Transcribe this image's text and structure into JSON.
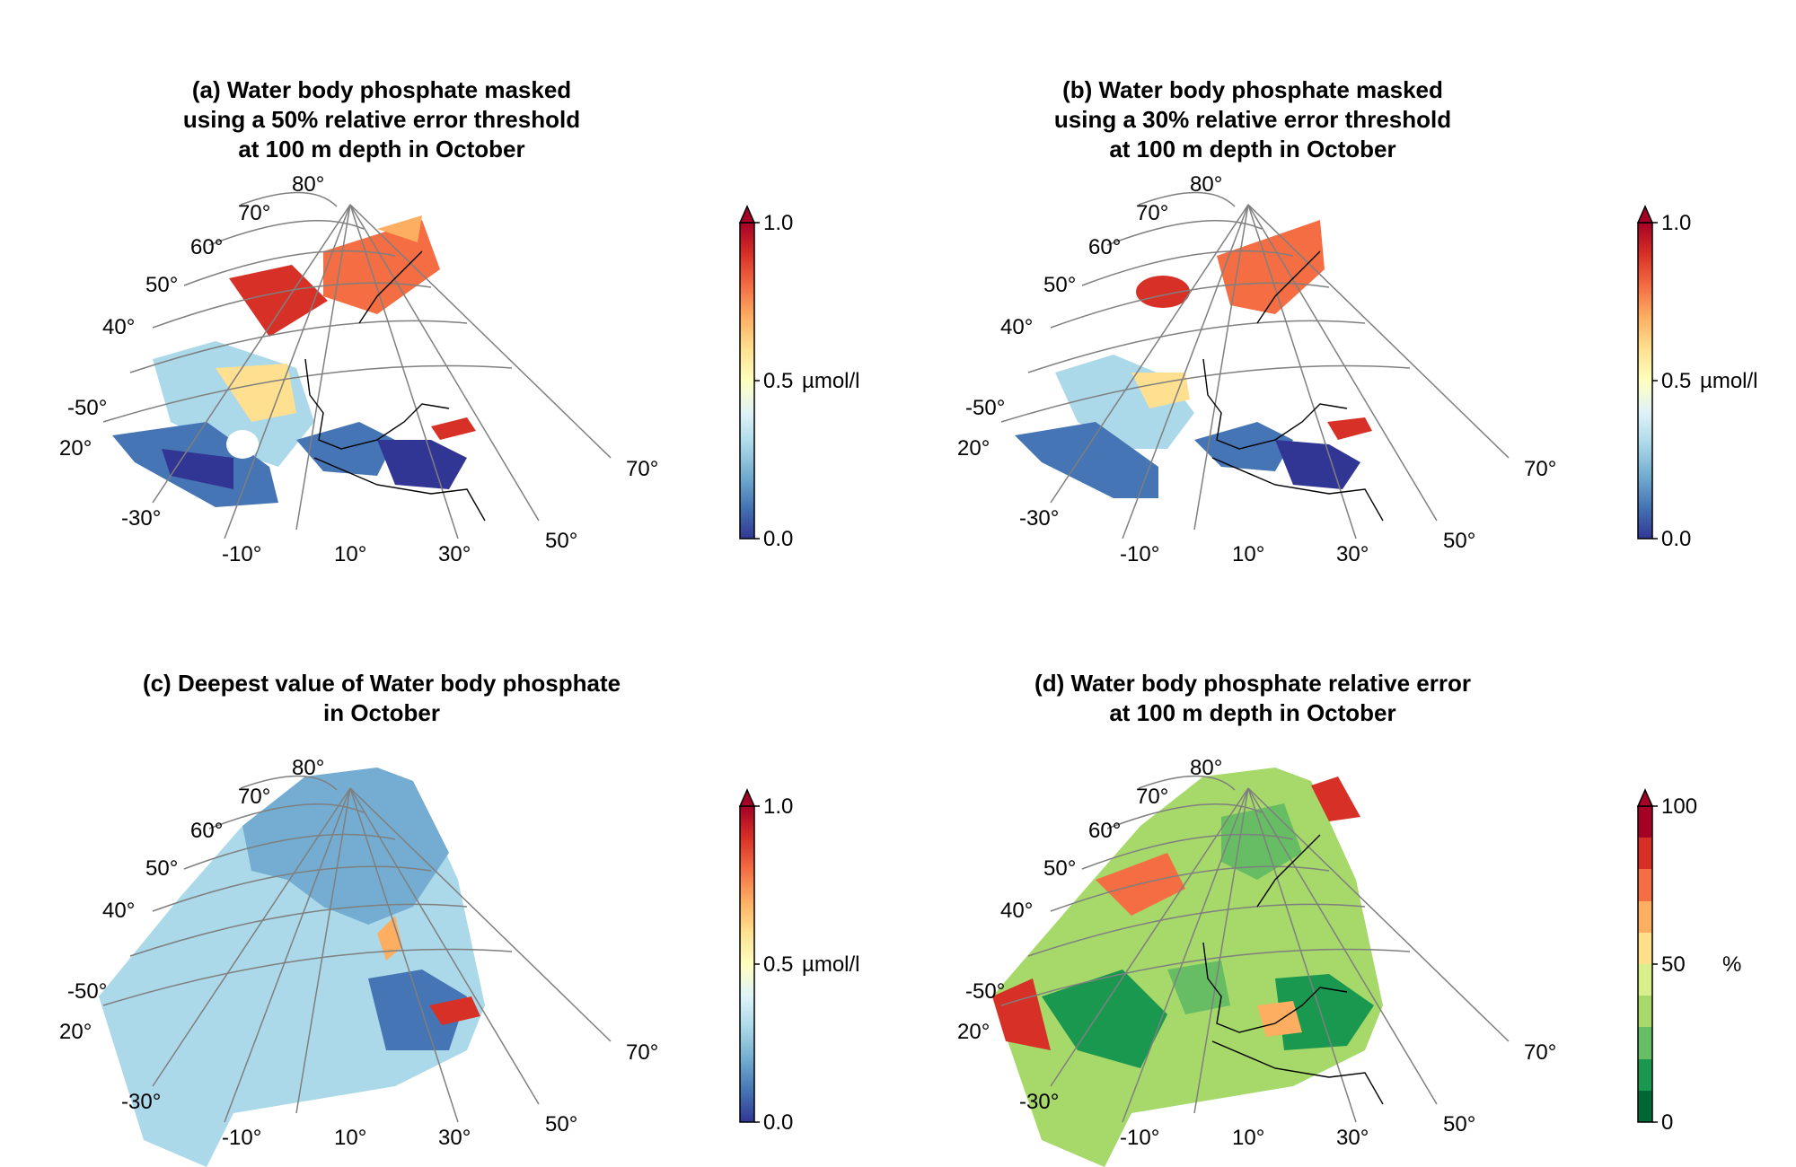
{
  "panels": [
    {
      "id": "a",
      "title_lines": [
        "(a) Water body phosphate masked",
        "using a 50% relative error threshold",
        "at 100 m depth in October"
      ],
      "colorbar": {
        "min_label": "0.0",
        "mid_label": "0.5",
        "max_label": "1.0",
        "unit": "µmol/l",
        "type": "continuous",
        "extend": "max"
      }
    },
    {
      "id": "b",
      "title_lines": [
        "(b) Water body phosphate masked",
        "using a 30% relative error threshold",
        "at 100 m depth in October"
      ],
      "colorbar": {
        "min_label": "0.0",
        "mid_label": "0.5",
        "max_label": "1.0",
        "unit": "µmol/l",
        "type": "continuous",
        "extend": "max"
      }
    },
    {
      "id": "c",
      "title_lines": [
        "(c) Deepest value of Water body phosphate",
        "in October"
      ],
      "colorbar": {
        "min_label": "0.0",
        "mid_label": "0.5",
        "max_label": "1.0",
        "unit": "µmol/l",
        "type": "continuous",
        "extend": "max"
      }
    },
    {
      "id": "d",
      "title_lines": [
        "(d) Water body phosphate relative error",
        "at 100 m depth in October"
      ],
      "colorbar": {
        "min_label": "0",
        "mid_label": "50",
        "max_label": "100",
        "unit": "%",
        "type": "discrete",
        "extend": "max"
      }
    }
  ],
  "graticule": {
    "lat_labels": [
      "80°",
      "70°",
      "60°",
      "50°",
      "40°",
      "20°"
    ],
    "lon_labels": [
      "-50°",
      "-30°",
      "-10°",
      "10°",
      "30°",
      "50°",
      "70°"
    ]
  },
  "colors": {
    "continuous_ramp": [
      "#313695",
      "#4575b4",
      "#74add1",
      "#abd9e9",
      "#e0f3f8",
      "#ffffbf",
      "#fee090",
      "#fdae61",
      "#f46d43",
      "#d73027",
      "#a50026"
    ],
    "discrete_ramp": [
      "#006837",
      "#1a9850",
      "#66bd63",
      "#a6d96a",
      "#d9ef8b",
      "#fee08b",
      "#fdae61",
      "#f46d43",
      "#d73027",
      "#a50026"
    ],
    "graticule": "#7f7f7f",
    "coastline": "#000000"
  }
}
